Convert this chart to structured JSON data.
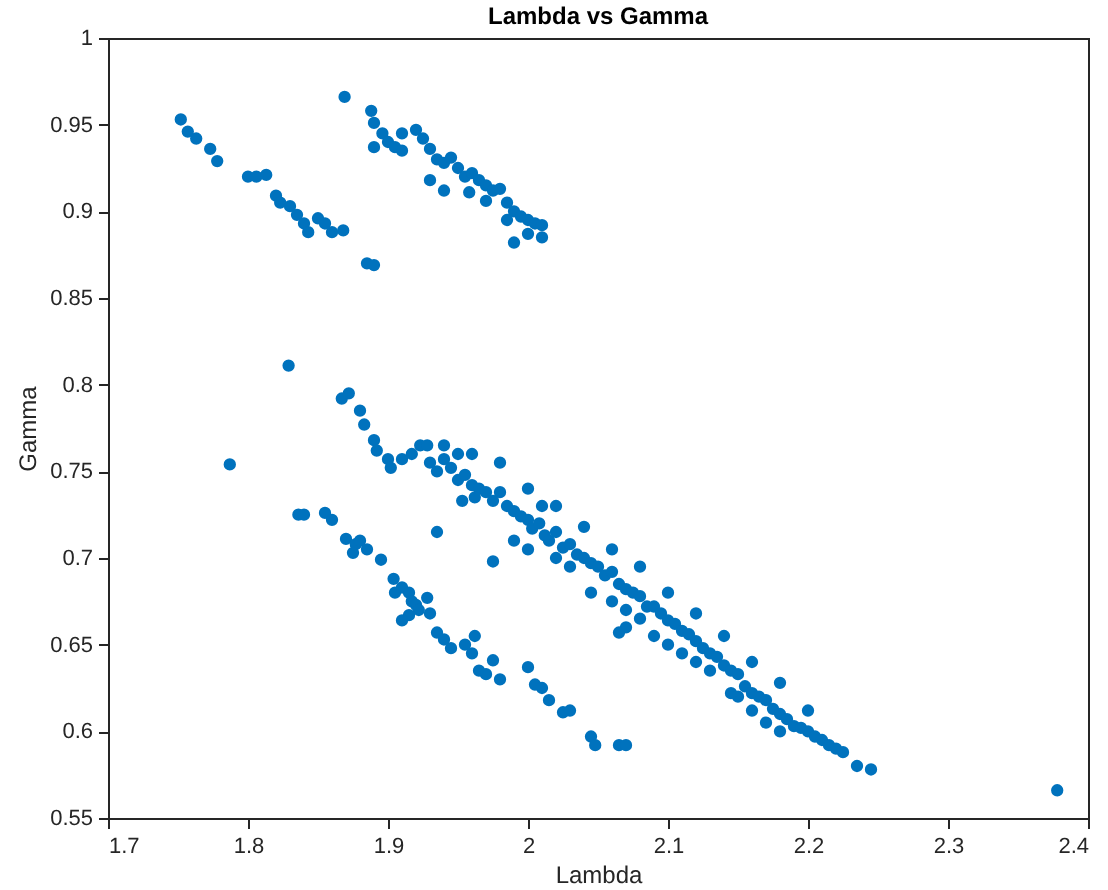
{
  "chart_data": {
    "type": "scatter",
    "title": "Lambda vs Gamma",
    "xlabel": "Lambda",
    "ylabel": "Gamma",
    "xlim": [
      1.7,
      2.4
    ],
    "xticks": [
      1.7,
      1.8,
      1.9,
      2,
      2.1,
      2.2,
      2.3,
      2.4
    ],
    "ylim": [
      0.55,
      1
    ],
    "yticks": [
      0.55,
      0.6,
      0.65,
      0.7,
      0.75,
      0.8,
      0.85,
      0.9,
      0.95,
      1
    ],
    "grid": false,
    "marker": "circle",
    "series": [
      {
        "color": "#0072bd",
        "x": [
          1.752,
          1.757,
          1.763,
          1.773,
          1.778,
          1.8,
          1.806,
          1.813,
          1.82,
          1.823,
          1.83,
          1.835,
          1.84,
          1.843,
          1.85,
          1.855,
          1.86,
          1.868,
          1.885,
          1.89,
          1.869,
          1.888,
          1.89,
          1.896,
          1.9,
          1.905,
          1.91,
          1.92,
          1.925,
          1.93,
          1.935,
          1.94,
          1.945,
          1.95,
          1.955,
          1.96,
          1.965,
          1.97,
          1.975,
          1.98,
          1.985,
          1.99,
          1.995,
          2.0,
          2.005,
          2.01,
          2.01,
          1.93,
          1.91,
          1.94,
          1.89,
          1.958,
          1.97,
          2.0,
          1.985,
          1.99,
          1.787,
          1.829,
          1.836,
          1.84,
          1.855,
          1.86,
          1.87,
          1.877,
          1.88,
          1.875,
          1.885,
          1.895,
          1.904,
          1.905,
          1.91,
          1.915,
          1.917,
          1.92,
          1.915,
          1.91,
          1.922,
          1.93,
          1.928,
          1.935,
          1.94,
          1.945,
          1.955,
          1.96,
          1.965,
          1.97,
          1.98,
          2.0,
          2.005,
          2.01,
          2.015,
          2.025,
          2.03,
          2.045,
          2.048,
          2.065,
          2.07,
          1.975,
          1.962,
          1.867,
          1.872,
          1.88,
          1.883,
          1.89,
          1.892,
          1.9,
          1.902,
          1.91,
          1.917,
          1.923,
          1.928,
          1.93,
          1.935,
          1.94,
          1.945,
          1.95,
          1.955,
          1.96,
          1.962,
          1.965,
          1.97,
          1.975,
          1.98,
          1.985,
          1.99,
          1.995,
          2.0,
          2.003,
          2.008,
          2.012,
          2.015,
          2.02,
          2.025,
          2.03,
          2.035,
          2.04,
          2.045,
          2.05,
          2.055,
          2.06,
          2.065,
          2.07,
          2.075,
          2.08,
          2.085,
          2.09,
          2.095,
          2.1,
          2.105,
          2.11,
          2.115,
          2.12,
          2.125,
          2.13,
          2.135,
          2.14,
          2.145,
          2.15,
          2.155,
          2.16,
          2.165,
          2.17,
          2.175,
          2.18,
          2.185,
          2.19,
          2.195,
          2.2,
          2.205,
          2.21,
          2.215,
          2.22,
          2.225,
          2.235,
          2.245,
          1.935,
          1.975,
          1.953,
          1.99,
          2.0,
          2.02,
          2.03,
          2.045,
          2.06,
          2.07,
          2.08,
          2.1,
          2.12,
          2.13,
          2.07,
          2.065,
          2.09,
          2.15,
          2.16,
          2.17,
          2.18,
          1.96,
          1.98,
          2.0,
          2.02,
          2.04,
          2.06,
          2.08,
          2.1,
          2.12,
          2.14,
          2.16,
          2.18,
          2.2,
          1.95,
          1.94,
          2.01,
          2.11,
          2.145,
          2.378
        ],
        "values": [
          0.953,
          0.946,
          0.942,
          0.936,
          0.929,
          0.92,
          0.92,
          0.921,
          0.909,
          0.905,
          0.903,
          0.898,
          0.893,
          0.888,
          0.896,
          0.893,
          0.888,
          0.889,
          0.87,
          0.869,
          0.966,
          0.958,
          0.951,
          0.945,
          0.94,
          0.937,
          0.945,
          0.947,
          0.942,
          0.936,
          0.93,
          0.928,
          0.931,
          0.925,
          0.92,
          0.922,
          0.918,
          0.915,
          0.912,
          0.913,
          0.905,
          0.9,
          0.897,
          0.895,
          0.893,
          0.892,
          0.885,
          0.918,
          0.935,
          0.912,
          0.937,
          0.911,
          0.906,
          0.887,
          0.895,
          0.882,
          0.754,
          0.811,
          0.725,
          0.725,
          0.726,
          0.722,
          0.711,
          0.708,
          0.71,
          0.703,
          0.705,
          0.699,
          0.688,
          0.68,
          0.683,
          0.68,
          0.675,
          0.673,
          0.667,
          0.664,
          0.67,
          0.668,
          0.677,
          0.657,
          0.653,
          0.648,
          0.65,
          0.645,
          0.635,
          0.633,
          0.63,
          0.637,
          0.627,
          0.625,
          0.618,
          0.611,
          0.612,
          0.597,
          0.592,
          0.592,
          0.592,
          0.641,
          0.655,
          0.792,
          0.795,
          0.785,
          0.777,
          0.768,
          0.762,
          0.757,
          0.752,
          0.757,
          0.76,
          0.765,
          0.765,
          0.755,
          0.75,
          0.757,
          0.752,
          0.745,
          0.748,
          0.742,
          0.735,
          0.74,
          0.738,
          0.733,
          0.738,
          0.73,
          0.727,
          0.724,
          0.722,
          0.717,
          0.72,
          0.713,
          0.71,
          0.715,
          0.706,
          0.708,
          0.702,
          0.7,
          0.697,
          0.695,
          0.69,
          0.692,
          0.685,
          0.682,
          0.68,
          0.678,
          0.672,
          0.672,
          0.668,
          0.664,
          0.662,
          0.658,
          0.656,
          0.652,
          0.648,
          0.645,
          0.643,
          0.638,
          0.635,
          0.633,
          0.626,
          0.622,
          0.62,
          0.618,
          0.613,
          0.61,
          0.607,
          0.603,
          0.602,
          0.6,
          0.597,
          0.595,
          0.592,
          0.59,
          0.588,
          0.58,
          0.578,
          0.715,
          0.698,
          0.733,
          0.71,
          0.705,
          0.7,
          0.695,
          0.68,
          0.675,
          0.67,
          0.665,
          0.65,
          0.64,
          0.635,
          0.66,
          0.657,
          0.655,
          0.62,
          0.612,
          0.605,
          0.6,
          0.76,
          0.755,
          0.74,
          0.73,
          0.718,
          0.705,
          0.695,
          0.68,
          0.668,
          0.655,
          0.64,
          0.628,
          0.612,
          0.76,
          0.765,
          0.73,
          0.645,
          0.622,
          0.566
        ]
      }
    ]
  }
}
